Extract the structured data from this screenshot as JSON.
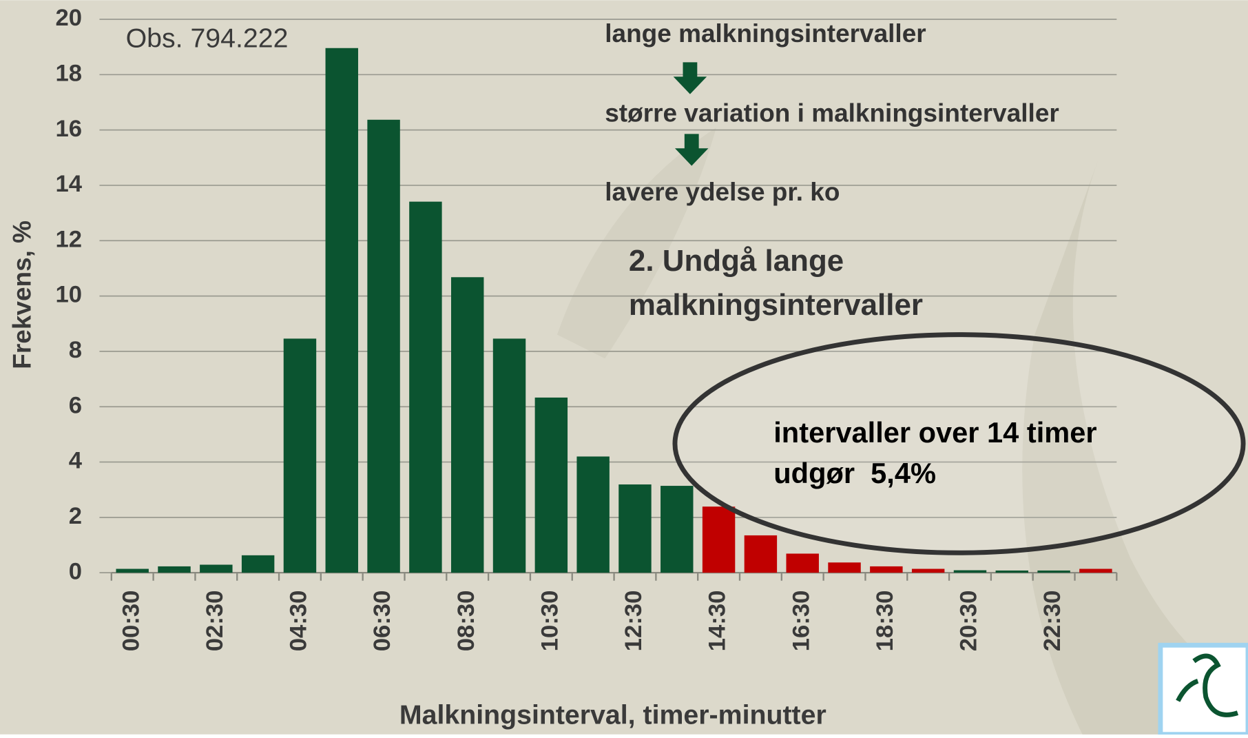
{
  "chart_data": {
    "type": "bar",
    "x_label": "Malkningsinterval, timer-minutter",
    "y_label": "Frekvens, %",
    "categories": [
      "00:30",
      null,
      "02:30",
      null,
      "04:30",
      null,
      "06:30",
      null,
      "08:30",
      null,
      "10:30",
      null,
      "12:30",
      null,
      "14:30",
      null,
      "16:30",
      null,
      "18:30",
      null,
      "20:30",
      null,
      "22:30",
      null
    ],
    "values": [
      0.14,
      0.23,
      0.29,
      0.63,
      8.46,
      18.96,
      16.37,
      13.41,
      10.68,
      8.46,
      6.33,
      4.2,
      3.19,
      3.14,
      2.39,
      1.35,
      0.69,
      0.37,
      0.23,
      0.14,
      0.09,
      0.08,
      0.08,
      0.14
    ],
    "colors": [
      "#0b5430",
      "#0b5430",
      "#0b5430",
      "#0b5430",
      "#0b5430",
      "#0b5430",
      "#0b5430",
      "#0b5430",
      "#0b5430",
      "#0b5430",
      "#0b5430",
      "#0b5430",
      "#0b5430",
      "#0b5430",
      "#c00000",
      "#c00000",
      "#c00000",
      "#c00000",
      "#c00000",
      "#c00000",
      "#0b5430",
      "#0b5430",
      "#0b5430",
      "#c00000"
    ],
    "ylim": [
      0,
      20
    ],
    "yticks": [
      0,
      2,
      4,
      6,
      8,
      10,
      12,
      14,
      16,
      18,
      20
    ],
    "grid": true,
    "annotations": {
      "obs": "Obs. 794.222",
      "step1": "lange malkningsintervaller",
      "step2": "større variation i malkningsintervaller",
      "step3": "lavere ydelse pr. ko",
      "heading1": "2. Undgå lange",
      "heading2": "malkningsintervaller",
      "note1": "intervaller over 14 timer",
      "note2": "udgør  5,4%"
    }
  }
}
